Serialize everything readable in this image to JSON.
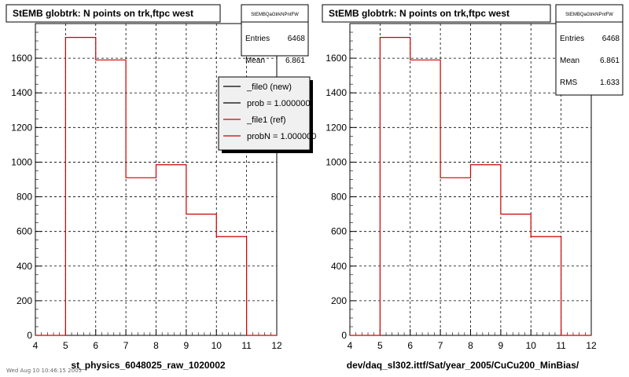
{
  "chart_data": [
    {
      "type": "histogram",
      "title": "StEMB globtrk: N points on trk,ftpc west",
      "xlabel": "st_physics_6048025_raw_1020002",
      "xlim": [
        4,
        12
      ],
      "ylim": [
        0,
        1800
      ],
      "x_ticks": [
        "4",
        "5",
        "6",
        "7",
        "8",
        "9",
        "10",
        "11",
        "12"
      ],
      "y_ticks": [
        "0",
        "200",
        "400",
        "600",
        "800",
        "1000",
        "1200",
        "1400",
        "1600"
      ],
      "grid": true,
      "bin_edges": [
        4,
        5,
        6,
        7,
        8,
        9,
        10,
        11,
        12
      ],
      "values": [
        0,
        1720,
        1590,
        910,
        985,
        700,
        570,
        0
      ],
      "series_color": "#cc0000",
      "stats": {
        "name": "StEMBQaGtrkNPntFW",
        "rows": [
          {
            "label": "Entries",
            "value": "6468"
          },
          {
            "label": "Mean",
            "value": "6.861"
          }
        ]
      },
      "legend": [
        {
          "label": "_file0 (new)",
          "color": "#000000"
        },
        {
          "label": "prob = 1.000000",
          "color": "#000000"
        },
        {
          "label": "_file1 (ref)",
          "color": "#cc0000"
        },
        {
          "label": "probN = 1.000000",
          "color": "#cc0000"
        }
      ]
    },
    {
      "type": "histogram",
      "title": "StEMB globtrk: N points on trk,ftpc west",
      "xlabel": "dev/daq_sl302.ittf/Sat/year_2005/CuCu200_MinBias/",
      "xlim": [
        4,
        12
      ],
      "ylim": [
        0,
        1800
      ],
      "x_ticks": [
        "4",
        "5",
        "6",
        "7",
        "8",
        "9",
        "10",
        "11",
        "12"
      ],
      "y_ticks": [
        "0",
        "200",
        "400",
        "600",
        "800",
        "1000",
        "1200",
        "1400",
        "1600"
      ],
      "grid": true,
      "bin_edges": [
        4,
        5,
        6,
        7,
        8,
        9,
        10,
        11,
        12
      ],
      "values": [
        0,
        1720,
        1590,
        910,
        985,
        700,
        570,
        0
      ],
      "series_color": "#cc0000",
      "stats": {
        "name": "StEMBQaGtrkNPntFW",
        "rows": [
          {
            "label": "Entries",
            "value": "6468"
          },
          {
            "label": "Mean",
            "value": "6.861"
          },
          {
            "label": "RMS",
            "value": "1.633"
          }
        ]
      }
    }
  ],
  "footer": "Wed Aug 10 10:46:15 2005"
}
